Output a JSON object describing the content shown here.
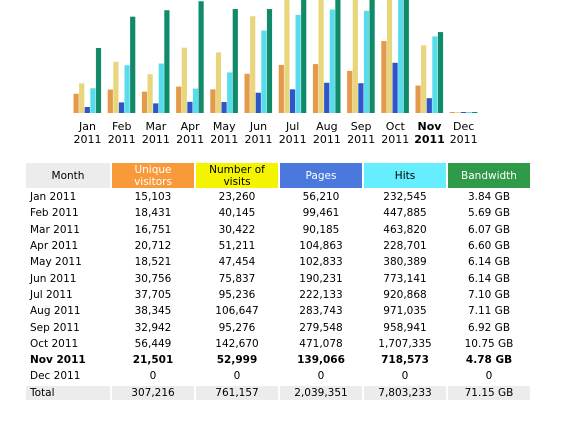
{
  "chart": {
    "months": [
      {
        "month": "Jan",
        "year": "2011"
      },
      {
        "month": "Feb",
        "year": "2011"
      },
      {
        "month": "Mar",
        "year": "2011"
      },
      {
        "month": "Apr",
        "year": "2011"
      },
      {
        "month": "May",
        "year": "2011"
      },
      {
        "month": "Jun",
        "year": "2011"
      },
      {
        "month": "Jul",
        "year": "2011"
      },
      {
        "month": "Aug",
        "year": "2011"
      },
      {
        "month": "Sep",
        "year": "2011"
      },
      {
        "month": "Oct",
        "year": "2011"
      },
      {
        "month": "Nov",
        "year": "2011"
      },
      {
        "month": "Dec",
        "year": "2011"
      }
    ]
  },
  "table": {
    "header": [
      "Month",
      "Unique visitors",
      "Number of visits",
      "Pages",
      "Hits",
      "Bandwidth"
    ],
    "rows": [
      [
        "Jan 2011",
        "15,103",
        "23,260",
        "56,210",
        "232,545",
        "3.84 GB"
      ],
      [
        "Feb 2011",
        "18,431",
        "40,145",
        "99,461",
        "447,885",
        "5.69 GB"
      ],
      [
        "Mar 2011",
        "16,751",
        "30,422",
        "90,185",
        "463,820",
        "6.07 GB"
      ],
      [
        "Apr 2011",
        "20,712",
        "51,211",
        "104,863",
        "228,701",
        "6.60 GB"
      ],
      [
        "May 2011",
        "18,521",
        "47,454",
        "102,833",
        "380,389",
        "6.14 GB"
      ],
      [
        "Jun 2011",
        "30,756",
        "75,837",
        "190,231",
        "773,141",
        "6.14 GB"
      ],
      [
        "Jul 2011",
        "37,705",
        "95,236",
        "222,133",
        "920,868",
        "7.10 GB"
      ],
      [
        "Aug 2011",
        "38,345",
        "106,647",
        "283,743",
        "971,035",
        "7.11 GB"
      ],
      [
        "Sep 2011",
        "32,942",
        "95,276",
        "279,548",
        "958,941",
        "6.92 GB"
      ],
      [
        "Oct 2011",
        "56,449",
        "142,670",
        "471,078",
        "1,707,335",
        "10.75 GB"
      ],
      [
        "Nov 2011",
        "21,501",
        "52,999",
        "139,066",
        "718,573",
        "4.78 GB"
      ],
      [
        "Dec 2011",
        "0",
        "0",
        "0",
        "0",
        "0"
      ]
    ],
    "total": [
      "Total",
      "307,216",
      "761,157",
      "2,039,351",
      "7,803,233",
      "71.15 GB"
    ]
  }
}
